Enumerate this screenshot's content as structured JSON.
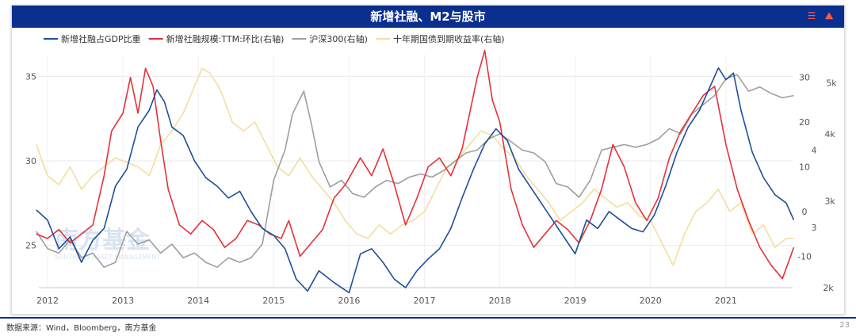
{
  "title": "新增社融、M2与股市",
  "toolbar": {
    "icons": [
      "list-icon",
      "chart-tool-icon"
    ],
    "accent": "#ff5a3c"
  },
  "source_note": "数据来源：Wind，Bloomberg，南方基金",
  "page_number": "23",
  "watermark": {
    "cn": "南方基金",
    "en": "SOUTHERN ASSET MANAGEMENT"
  },
  "chart_data": {
    "type": "line",
    "x_ticks": [
      "2012",
      "2013",
      "2014",
      "2015",
      "2016",
      "2017",
      "2018",
      "2019",
      "2020",
      "2021"
    ],
    "axes": {
      "left": {
        "ticks": [
          25,
          30,
          35
        ],
        "range": [
          22.5,
          36
        ]
      },
      "right1": {
        "ticks": [
          -10,
          0,
          10,
          20,
          30
        ],
        "range": [
          -17,
          34
        ]
      },
      "right2": {
        "ticks": [
          "2k",
          "3",
          "3k",
          "4",
          "4k",
          "5k"
        ],
        "scale": "log"
      }
    },
    "legend_position": "top-left",
    "grid": true,
    "series": [
      {
        "name": "新增社融占GDP比重",
        "axis": "left",
        "color": "#1f4e9c",
        "x": [
          2011.85,
          2012.0,
          2012.15,
          2012.3,
          2012.45,
          2012.6,
          2012.75,
          2012.9,
          2013.05,
          2013.2,
          2013.35,
          2013.45,
          2013.55,
          2013.65,
          2013.8,
          2013.95,
          2014.1,
          2014.25,
          2014.4,
          2014.55,
          2014.7,
          2014.85,
          2015.0,
          2015.15,
          2015.3,
          2015.45,
          2015.6,
          2015.8,
          2016.0,
          2016.15,
          2016.3,
          2016.45,
          2016.6,
          2016.75,
          2016.9,
          2017.05,
          2017.2,
          2017.35,
          2017.5,
          2017.65,
          2017.8,
          2017.95,
          2018.1,
          2018.25,
          2018.4,
          2018.55,
          2018.7,
          2018.85,
          2019.0,
          2019.15,
          2019.3,
          2019.45,
          2019.6,
          2019.75,
          2019.9,
          2020.05,
          2020.2,
          2020.35,
          2020.5,
          2020.65,
          2020.8,
          2020.9,
          2021.0,
          2021.1,
          2021.2,
          2021.35,
          2021.5,
          2021.65,
          2021.8,
          2021.9
        ],
        "values": [
          27.1,
          26.5,
          24.8,
          25.5,
          24.0,
          25.3,
          26.0,
          28.5,
          29.5,
          32.0,
          33.0,
          34.2,
          33.5,
          32.0,
          31.5,
          30.0,
          29.0,
          28.5,
          27.8,
          28.2,
          27.0,
          26.0,
          25.6,
          24.8,
          23.0,
          22.3,
          23.5,
          22.8,
          22.2,
          24.5,
          24.8,
          24.0,
          23.0,
          22.5,
          23.5,
          24.2,
          24.8,
          26.0,
          27.8,
          29.5,
          31.0,
          31.9,
          31.2,
          29.5,
          28.5,
          27.5,
          26.5,
          25.5,
          24.5,
          26.5,
          26.0,
          27.0,
          26.5,
          26.0,
          25.8,
          26.8,
          28.5,
          30.5,
          32.0,
          33.0,
          34.5,
          35.5,
          34.8,
          35.2,
          33.0,
          30.5,
          29.0,
          28.0,
          27.5,
          26.5
        ]
      },
      {
        "name": "新增社融规模:TTM:环比(右轴)",
        "axis": "right1",
        "color": "#e4323a",
        "x": [
          2011.85,
          2012.0,
          2012.15,
          2012.3,
          2012.45,
          2012.6,
          2012.75,
          2012.85,
          2013.0,
          2013.1,
          2013.2,
          2013.3,
          2013.4,
          2013.5,
          2013.6,
          2013.75,
          2013.9,
          2014.05,
          2014.2,
          2014.35,
          2014.5,
          2014.65,
          2014.8,
          2014.95,
          2015.1,
          2015.2,
          2015.35,
          2015.5,
          2015.65,
          2015.8,
          2015.95,
          2016.05,
          2016.15,
          2016.3,
          2016.45,
          2016.6,
          2016.75,
          2016.9,
          2017.05,
          2017.2,
          2017.35,
          2017.5,
          2017.6,
          2017.7,
          2017.8,
          2017.9,
          2018.0,
          2018.15,
          2018.3,
          2018.45,
          2018.6,
          2018.75,
          2018.9,
          2019.05,
          2019.2,
          2019.35,
          2019.5,
          2019.65,
          2019.8,
          2019.95,
          2020.1,
          2020.25,
          2020.4,
          2020.55,
          2020.7,
          2020.85,
          2021.0,
          2021.15,
          2021.3,
          2021.45,
          2021.6,
          2021.75,
          2021.9
        ],
        "values": [
          -5,
          -6,
          -4,
          -7,
          -5,
          -3,
          8,
          18,
          22,
          30,
          22,
          32,
          28,
          16,
          5,
          -3,
          -5,
          -2,
          -4,
          -8,
          -6,
          -2,
          -3,
          -5,
          -6,
          -2,
          -10,
          -7,
          -4,
          3,
          6,
          9,
          12,
          8,
          14,
          6,
          -3,
          3,
          10,
          12,
          8,
          14,
          22,
          30,
          36,
          25,
          20,
          5,
          -3,
          -8,
          -5,
          -2,
          -4,
          -7,
          -2,
          5,
          15,
          10,
          2,
          -2,
          3,
          12,
          18,
          22,
          26,
          28,
          15,
          5,
          -2,
          -8,
          -12,
          -15,
          -8
        ]
      },
      {
        "name": "沪深300(右轴)",
        "axis": "right2",
        "color": "#9e9e9e",
        "x": [
          2011.85,
          2012.0,
          2012.15,
          2012.3,
          2012.45,
          2012.6,
          2012.75,
          2012.9,
          2013.05,
          2013.2,
          2013.35,
          2013.5,
          2013.65,
          2013.8,
          2013.95,
          2014.1,
          2014.25,
          2014.4,
          2014.55,
          2014.7,
          2014.85,
          2015.0,
          2015.15,
          2015.25,
          2015.4,
          2015.5,
          2015.6,
          2015.75,
          2015.9,
          2016.05,
          2016.2,
          2016.35,
          2016.5,
          2016.65,
          2016.8,
          2016.95,
          2017.1,
          2017.25,
          2017.4,
          2017.55,
          2017.7,
          2017.85,
          2018.0,
          2018.15,
          2018.3,
          2018.45,
          2018.6,
          2018.75,
          2018.9,
          2019.05,
          2019.2,
          2019.35,
          2019.5,
          2019.65,
          2019.8,
          2019.95,
          2020.1,
          2020.25,
          2020.4,
          2020.55,
          2020.7,
          2020.85,
          2021.0,
          2021.15,
          2021.3,
          2021.45,
          2021.6,
          2021.75,
          2021.9
        ],
        "values": [
          2600,
          2400,
          2350,
          2500,
          2300,
          2350,
          2200,
          2250,
          2600,
          2450,
          2500,
          2350,
          2450,
          2300,
          2350,
          2250,
          2200,
          2300,
          2250,
          2300,
          2450,
          3300,
          3800,
          4500,
          5000,
          4300,
          3600,
          3200,
          3300,
          3100,
          3050,
          3200,
          3300,
          3250,
          3350,
          3400,
          3350,
          3450,
          3600,
          3750,
          3800,
          4000,
          4100,
          3950,
          3800,
          3750,
          3600,
          3250,
          3200,
          3050,
          3300,
          3800,
          3850,
          3900,
          3850,
          3900,
          4000,
          4200,
          4100,
          4500,
          4700,
          4900,
          5300,
          5400,
          5000,
          5100,
          4950,
          4850,
          4900
        ]
      },
      {
        "name": "十年期国债到期收益率(右轴)",
        "axis": "right1",
        "color": "#f3de9e",
        "x": [
          2011.85,
          2012.0,
          2012.15,
          2012.3,
          2012.45,
          2012.6,
          2012.75,
          2012.9,
          2013.05,
          2013.2,
          2013.35,
          2013.5,
          2013.65,
          2013.8,
          2013.95,
          2014.05,
          2014.15,
          2014.3,
          2014.45,
          2014.6,
          2014.75,
          2014.9,
          2015.05,
          2015.2,
          2015.35,
          2015.5,
          2015.65,
          2015.8,
          2015.95,
          2016.1,
          2016.25,
          2016.4,
          2016.55,
          2016.7,
          2016.85,
          2017.0,
          2017.15,
          2017.3,
          2017.45,
          2017.6,
          2017.75,
          2017.9,
          2018.05,
          2018.2,
          2018.35,
          2018.5,
          2018.65,
          2018.8,
          2018.95,
          2019.1,
          2019.25,
          2019.4,
          2019.55,
          2019.7,
          2019.85,
          2020.0,
          2020.15,
          2020.3,
          2020.45,
          2020.6,
          2020.75,
          2020.9,
          2021.05,
          2021.2,
          2021.35,
          2021.5,
          2021.65,
          2021.8,
          2021.9
        ],
        "values": [
          15,
          8,
          6,
          10,
          5,
          8,
          10,
          12,
          11,
          10,
          8,
          15,
          18,
          22,
          28,
          32,
          31,
          27,
          20,
          18,
          20,
          15,
          10,
          8,
          12,
          8,
          5,
          2,
          -2,
          -5,
          -6,
          -3,
          -5,
          -3,
          -2,
          0,
          5,
          10,
          12,
          15,
          18,
          17,
          14,
          12,
          8,
          5,
          2,
          -2,
          0,
          2,
          5,
          3,
          1,
          2,
          -1,
          -2,
          -7,
          -12,
          -5,
          0,
          2,
          5,
          0,
          2,
          -5,
          -3,
          -8,
          -6,
          -6
        ]
      }
    ]
  }
}
